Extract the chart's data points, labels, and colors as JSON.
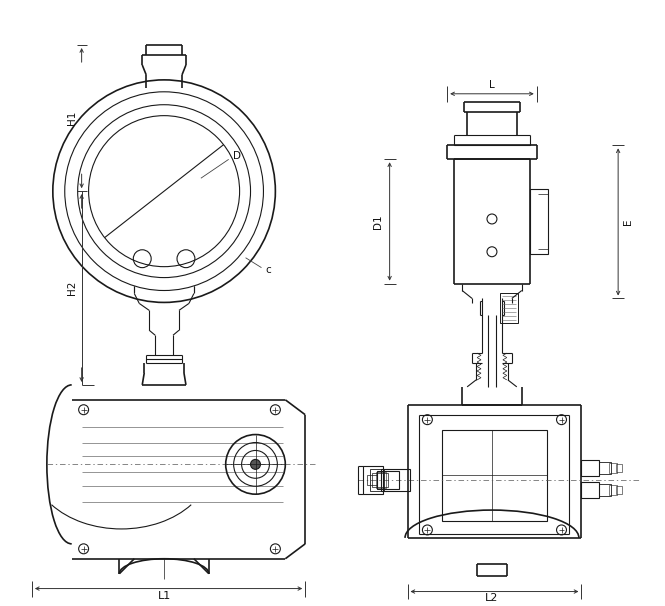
{
  "bg_color": "#ffffff",
  "lc": "#1a1a1a",
  "lw": 0.8,
  "tlw": 0.5,
  "thklw": 1.2,
  "labels": {
    "L1": "L1",
    "L2": "L2",
    "H1": "H1",
    "H2": "H2",
    "D": "D",
    "c": "c",
    "D1": "D1",
    "E": "E",
    "L": "L"
  }
}
